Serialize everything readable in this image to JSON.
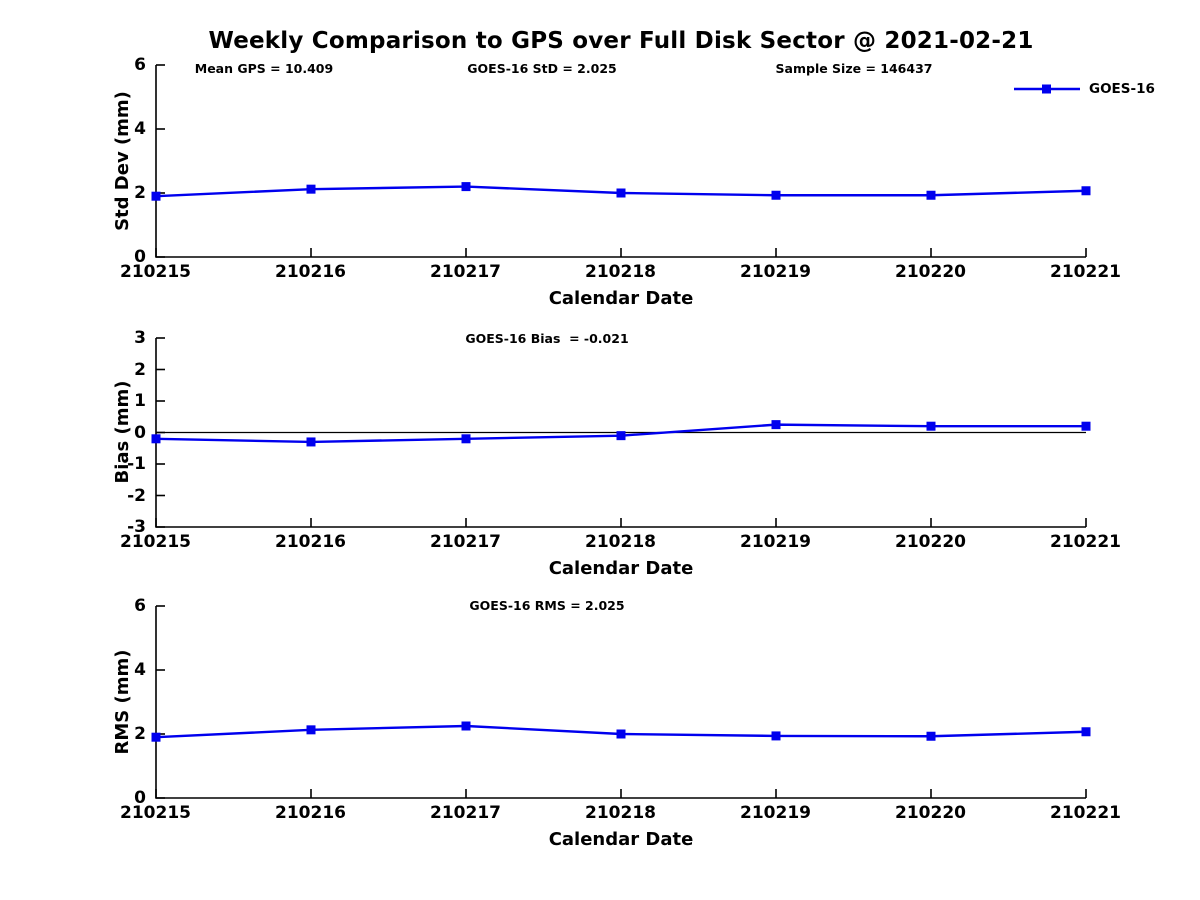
{
  "title": "Weekly Comparison to GPS over Full Disk Sector @ 2021-02-21",
  "legend": {
    "label": "GOES-16"
  },
  "colors": {
    "line": "#0000ee",
    "axis": "#000000",
    "text": "#000000",
    "background": "#ffffff"
  },
  "chart_data": [
    {
      "type": "line",
      "name": "std-dev",
      "annotations": [
        "Mean GPS = 10.409",
        "GOES-16 StD = 2.025",
        "Sample Size = 146437"
      ],
      "categories": [
        "210215",
        "210216",
        "210217",
        "210218",
        "210219",
        "210220",
        "210221"
      ],
      "series": [
        {
          "name": "GOES-16",
          "values": [
            1.9,
            2.12,
            2.2,
            2.0,
            1.93,
            1.93,
            2.07
          ]
        }
      ],
      "xlabel": "Calendar Date",
      "ylabel": "Std Dev (mm)",
      "ylim": [
        0,
        6
      ],
      "yticks": [
        0,
        2,
        4,
        6
      ],
      "grid": false,
      "legend_position": "top-right-outside"
    },
    {
      "type": "line",
      "name": "bias",
      "annotations": [
        "GOES-16 Bias  = -0.021"
      ],
      "categories": [
        "210215",
        "210216",
        "210217",
        "210218",
        "210219",
        "210220",
        "210221"
      ],
      "series": [
        {
          "name": "GOES-16",
          "values": [
            -0.2,
            -0.3,
            -0.2,
            -0.1,
            0.25,
            0.2,
            0.2
          ]
        }
      ],
      "xlabel": "Calendar Date",
      "ylabel": "Bias (mm)",
      "ylim": [
        -3,
        3
      ],
      "yticks": [
        -3,
        -2,
        -1,
        0,
        1,
        2,
        3
      ],
      "zero_line": true,
      "grid": false
    },
    {
      "type": "line",
      "name": "rms",
      "annotations": [
        "GOES-16 RMS = 2.025"
      ],
      "categories": [
        "210215",
        "210216",
        "210217",
        "210218",
        "210219",
        "210220",
        "210221"
      ],
      "series": [
        {
          "name": "GOES-16",
          "values": [
            1.9,
            2.13,
            2.25,
            2.0,
            1.94,
            1.93,
            2.07
          ]
        }
      ],
      "xlabel": "Calendar Date",
      "ylabel": "RMS (mm)",
      "ylim": [
        0,
        6
      ],
      "yticks": [
        0,
        2,
        4,
        6
      ],
      "grid": false
    }
  ]
}
